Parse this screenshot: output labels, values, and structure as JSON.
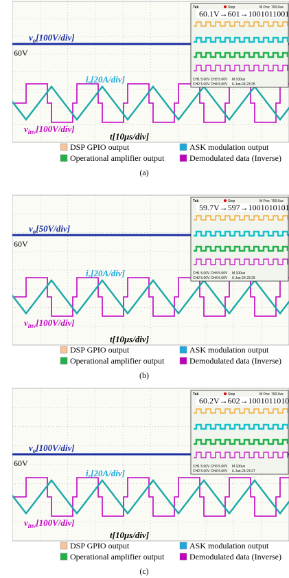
{
  "panels": [
    {
      "caption": "(a)",
      "vo": {
        "symbol": "v",
        "sub": "o",
        "scale": "[100V/div]"
      },
      "level": "60V",
      "ir": {
        "symbol": "i",
        "sub": "r",
        "scale": "[20A/div]"
      },
      "vinv": {
        "symbol": "v",
        "sub": "inv",
        "scale": "[100V/div]"
      },
      "time": {
        "symbol": "t",
        "scale": "[10μs/div]"
      },
      "inset": {
        "brand": "Tek",
        "status": "Stop",
        "pos": "M Pos: 700.0us",
        "readout": "60.1V→601→1001011001",
        "ch13": "CH1 5.00V  CH3 5.00V",
        "ch24": "CH2 5.00V  CH4 5.00V",
        "timebase": "M 100us",
        "date": "6-Jun-24 23:25"
      }
    },
    {
      "caption": "(b)",
      "vo": {
        "symbol": "v",
        "sub": "o",
        "scale": "[50V/div]"
      },
      "level": "60V",
      "ir": {
        "symbol": "i",
        "sub": "r",
        "scale": "[20A/div]"
      },
      "vinv": {
        "symbol": "v",
        "sub": "inv",
        "scale": "[100V/div]"
      },
      "time": {
        "symbol": "t",
        "scale": "[10μs/div]"
      },
      "inset": {
        "brand": "Tek",
        "status": "Stop",
        "pos": "M Pos: 700.0us",
        "readout": "59.7V→597→1001010101",
        "ch13": "CH1 5.00V  CH3 5.00V",
        "ch24": "CH2 5.00V  CH4 5.00V",
        "timebase": "M 100us",
        "date": "6-Jun-24 23:29"
      }
    },
    {
      "caption": "(c)",
      "vo": {
        "symbol": "v",
        "sub": "o",
        "scale": "[100V/div]"
      },
      "level": "60V",
      "ir": {
        "symbol": "i",
        "sub": "r",
        "scale": "[20A/div]"
      },
      "vinv": {
        "symbol": "v",
        "sub": "inv",
        "scale": "[100V/div]"
      },
      "time": {
        "symbol": "t",
        "scale": "[10μs/div]"
      },
      "inset": {
        "brand": "Tek",
        "status": "Stop",
        "pos": "M Pos: 700.0us",
        "readout": "60.2V→602→1001011010",
        "ch13": "CH1 5.00V  CH3 5.00V",
        "ch24": "CH2 5.00V  CH4 5.00V",
        "timebase": "M 100us",
        "date": "6-Jun-24 23:27"
      }
    }
  ],
  "legend": [
    {
      "label": "DSP GPIO output",
      "color": "#f8c49a"
    },
    {
      "label": "ASK modulation output",
      "color": "#1ca8dc"
    },
    {
      "label": "Operational amplifier output",
      "color": "#22b04a"
    },
    {
      "label": "Demodulated data (Inverse)",
      "color": "#c000c0"
    }
  ]
}
